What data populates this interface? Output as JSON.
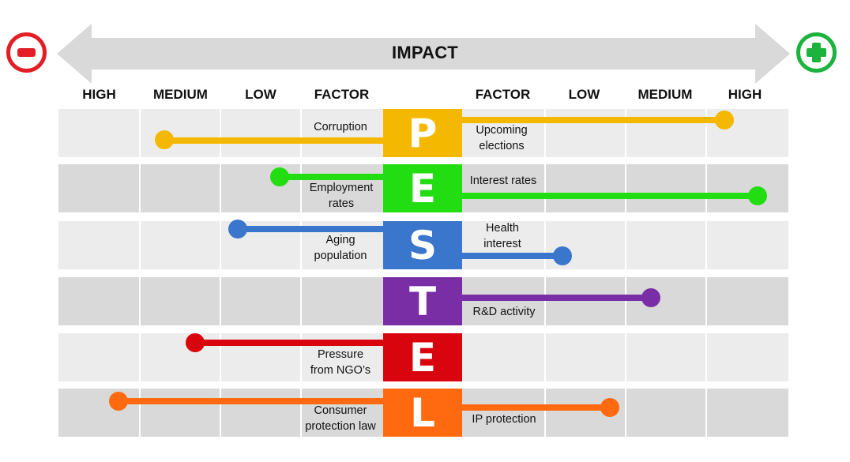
{
  "impact_label": "IMPACT",
  "sign_left": "minus",
  "sign_right": "plus",
  "colors": {
    "negative": "#e41e26",
    "positive": "#1cb33d",
    "arrow": "#d9d9d9"
  },
  "left_headers": [
    "HIGH",
    "MEDIUM",
    "LOW",
    "FACTOR"
  ],
  "right_headers": [
    "FACTOR",
    "LOW",
    "MEDIUM",
    "HIGH"
  ],
  "rows": [
    {
      "letter": "P",
      "color": "#f5b800",
      "left_factor": "Corruption",
      "left_impact": "Medium",
      "right_factor": "Upcoming\nelections",
      "right_impact": "High"
    },
    {
      "letter": "E",
      "color": "#22dd11",
      "left_factor": "Employment\nrates",
      "left_impact": "Low",
      "right_factor": "Interest rates",
      "right_impact": "High"
    },
    {
      "letter": "S",
      "color": "#3a76cc",
      "left_factor": "Aging\npopulation",
      "left_impact": "Low",
      "right_factor": "Health\ninterest",
      "right_impact": "Low"
    },
    {
      "letter": "T",
      "color": "#7a2ea6",
      "left_factor": "",
      "left_impact": "",
      "right_factor": "R&D activity",
      "right_impact": "Medium"
    },
    {
      "letter": "E",
      "color": "#d9050e",
      "left_factor": "Pressure\nfrom NGO’s",
      "left_impact": "Medium",
      "right_factor": "",
      "right_impact": ""
    },
    {
      "letter": "L",
      "color": "#ff6a10",
      "left_factor": "Consumer\nprotection law",
      "left_impact": "High",
      "right_factor": "IP protection",
      "right_impact": "Low"
    }
  ]
}
